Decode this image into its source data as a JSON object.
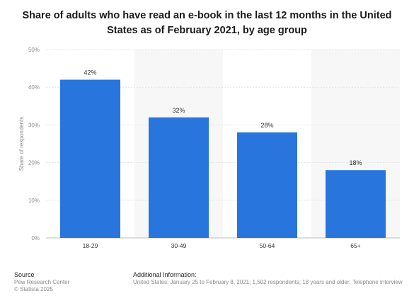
{
  "title": "Share of adults who have read an e-book in the last 12 months in the United States as of February 2021, by age group",
  "chart_data": {
    "type": "bar",
    "title": "Share of adults who have read an e-book in the last 12 months in the United States as of February 2021, by age group",
    "categories": [
      "18-29",
      "30-49",
      "50-64",
      "65+"
    ],
    "values": [
      42,
      32,
      28,
      18
    ],
    "value_labels": [
      "42%",
      "32%",
      "28%",
      "18%"
    ],
    "xlabel": "",
    "ylabel": "Share of respondents",
    "ylim": [
      0,
      50
    ],
    "yticks": [
      0,
      10,
      20,
      30,
      40,
      50
    ],
    "ytick_labels": [
      "0%",
      "10%",
      "20%",
      "30%",
      "40%",
      "50%"
    ],
    "grid": true,
    "bar_color": "#2876dd",
    "alt_band_color": "#f7f7f7"
  },
  "footer": {
    "source_heading": "Source",
    "source_lines": [
      "Pew Research Center",
      "© Statista 2025"
    ],
    "info_heading": "Additional Information:",
    "info_text": "United States; January 25 to February 8, 2021; 1,502 respondents; 18 years and older; Telephone interview"
  }
}
